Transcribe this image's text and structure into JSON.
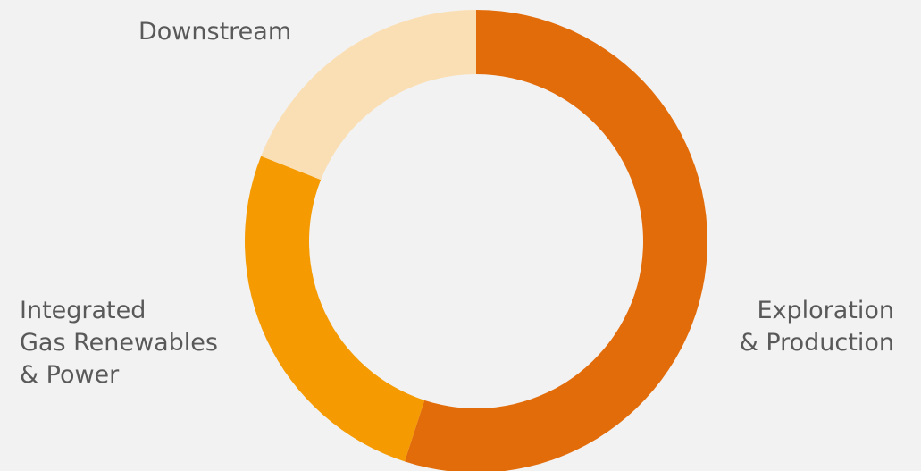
{
  "chart_data": {
    "type": "pie",
    "variant": "donut",
    "title": "",
    "slices": [
      {
        "label": "Exploration & Production",
        "label_lines": [
          "Exploration",
          "& Production"
        ],
        "value": 55,
        "color": "#e36c0a"
      },
      {
        "label": "Integrated Gas Renewables & Power",
        "label_lines": [
          "Integrated",
          "Gas Renewables",
          "& Power"
        ],
        "value": 26,
        "color": "#f59a00"
      },
      {
        "label": "Downstream",
        "label_lines": [
          "Downstream"
        ],
        "value": 19,
        "color": "#fbdfb4"
      }
    ],
    "start_angle_deg": 0,
    "direction": "clockwise",
    "legend": "none"
  },
  "colors": {
    "background": "#f2f2f2",
    "label_text": "#595959"
  }
}
